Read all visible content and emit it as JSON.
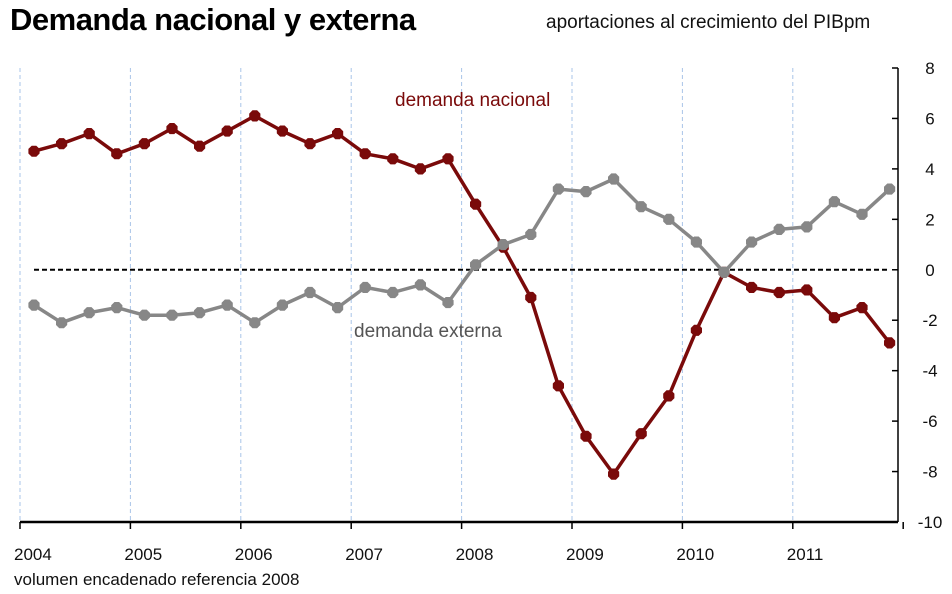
{
  "chart_data": {
    "type": "line",
    "title": "Demanda nacional y externa",
    "subtitle": "aportaciones al crecimiento del PIBpm",
    "footnote": "volumen encadenado referencia 2008",
    "ylim": [
      -10,
      8
    ],
    "yticks": [
      8,
      6,
      4,
      2,
      0,
      -2,
      -4,
      -6,
      -8,
      -10
    ],
    "year_labels": [
      "2004",
      "2005",
      "2006",
      "2007",
      "2008",
      "2009",
      "2010",
      "2011"
    ],
    "x": [
      "2004T1",
      "2004T2",
      "2004T3",
      "2004T4",
      "2005T1",
      "2005T2",
      "2005T3",
      "2005T4",
      "2006T1",
      "2006T2",
      "2006T3",
      "2006T4",
      "2007T1",
      "2007T2",
      "2007T3",
      "2007T4",
      "2008T1",
      "2008T2",
      "2008T3",
      "2008T4",
      "2009T1",
      "2009T2",
      "2009T3",
      "2009T4",
      "2010T1",
      "2010T2",
      "2010T3",
      "2010T4",
      "2011T1",
      "2011T2",
      "2011T3",
      "2011T4"
    ],
    "zero_line": "dashed",
    "series": [
      {
        "name": "demanda nacional",
        "color": "#7a0a0a",
        "values": [
          4.7,
          5.0,
          5.4,
          4.6,
          5.0,
          5.6,
          4.9,
          5.5,
          6.1,
          5.5,
          5.0,
          5.4,
          4.6,
          4.4,
          4.0,
          4.4,
          2.6,
          0.9,
          -1.1,
          -4.6,
          -6.6,
          -8.1,
          -6.5,
          -5.0,
          -2.4,
          -0.1,
          -0.7,
          -0.9,
          -0.8,
          -1.9,
          -1.5,
          -2.9
        ]
      },
      {
        "name": "demanda externa",
        "color": "#878787",
        "values": [
          -1.4,
          -2.1,
          -1.7,
          -1.5,
          -1.8,
          -1.8,
          -1.7,
          -1.4,
          -2.1,
          -1.4,
          -0.9,
          -1.5,
          -0.7,
          -0.9,
          -0.6,
          -1.3,
          0.2,
          1.0,
          1.4,
          3.2,
          3.1,
          3.6,
          2.5,
          2.0,
          1.1,
          -0.1,
          1.1,
          1.6,
          1.7,
          2.7,
          2.2,
          3.2
        ]
      }
    ]
  }
}
